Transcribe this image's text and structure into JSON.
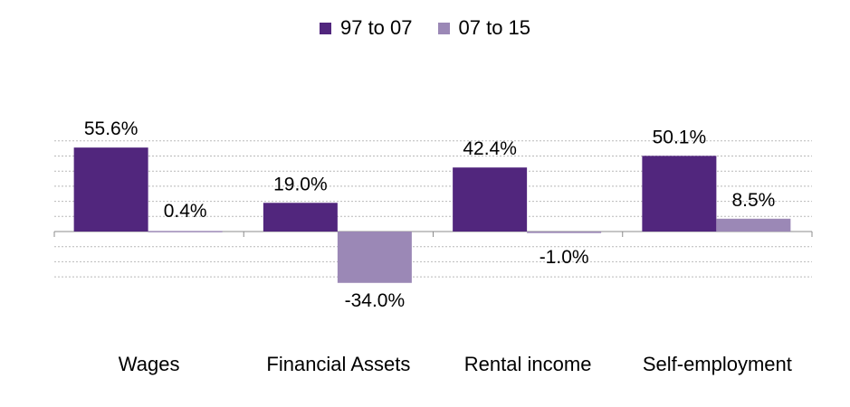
{
  "chart_data": {
    "type": "bar",
    "categories": [
      "Wages",
      "Financial Assets",
      "Rental income",
      "Self-employment"
    ],
    "series": [
      {
        "name": "97 to 07",
        "values": [
          55.6,
          19.0,
          42.4,
          50.1
        ],
        "labels": [
          "55.6%",
          "19.0%",
          "42.4%",
          "50.1%"
        ],
        "color": "#51267d"
      },
      {
        "name": "07 to 15",
        "values": [
          0.4,
          -34.0,
          -1.0,
          8.5
        ],
        "labels": [
          "0.4%",
          "-34.0%",
          "-1.0%",
          "8.5%"
        ],
        "color": "#9b88b6"
      }
    ],
    "ylim": [
      -40,
      70
    ],
    "grid": true,
    "legend_position": "top"
  }
}
